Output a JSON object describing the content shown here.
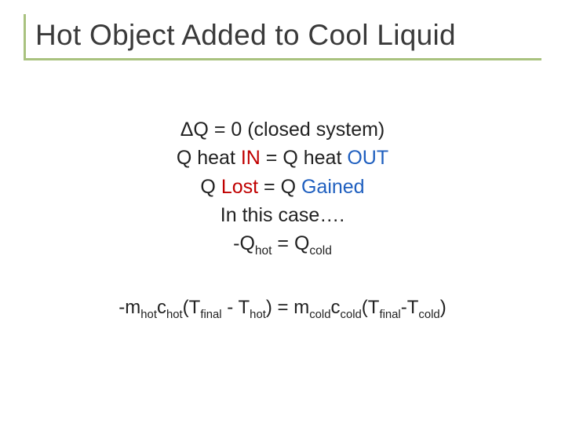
{
  "title": "Hot Object Added to Cool Liquid",
  "lines": {
    "l1a": "ΔQ = 0 (closed system)",
    "l2a": "Q heat ",
    "l2b": "IN",
    "l2c": " = Q heat ",
    "l2d": "OUT",
    "l3a": "Q ",
    "l3b": "Lost",
    "l3c": " = Q ",
    "l3d": "Gained",
    "l4": "In this case….",
    "l5a": "-Q",
    "l5b": "hot",
    "l5c": " = Q",
    "l5d": "cold"
  },
  "eq": {
    "p1": "-m",
    "p2": "hot",
    "p3": "c",
    "p4": "hot",
    "p5": "(T",
    "p6": "final",
    "p7": " - T",
    "p8": "hot",
    "p9": ") = m",
    "p10": "cold",
    "p11": "c",
    "p12": "cold",
    "p13": "(T",
    "p14": "final",
    "p15": "-T",
    "p16": "cold",
    "p17": ")"
  },
  "colors": {
    "accent_border": "#a9c27f",
    "title_color": "#3a3a3a",
    "body_color": "#222222",
    "red": "#c00000",
    "blue": "#1f5fbf",
    "background": "#ffffff"
  },
  "fontsizes": {
    "title": 37,
    "body": 25,
    "equation": 24
  }
}
